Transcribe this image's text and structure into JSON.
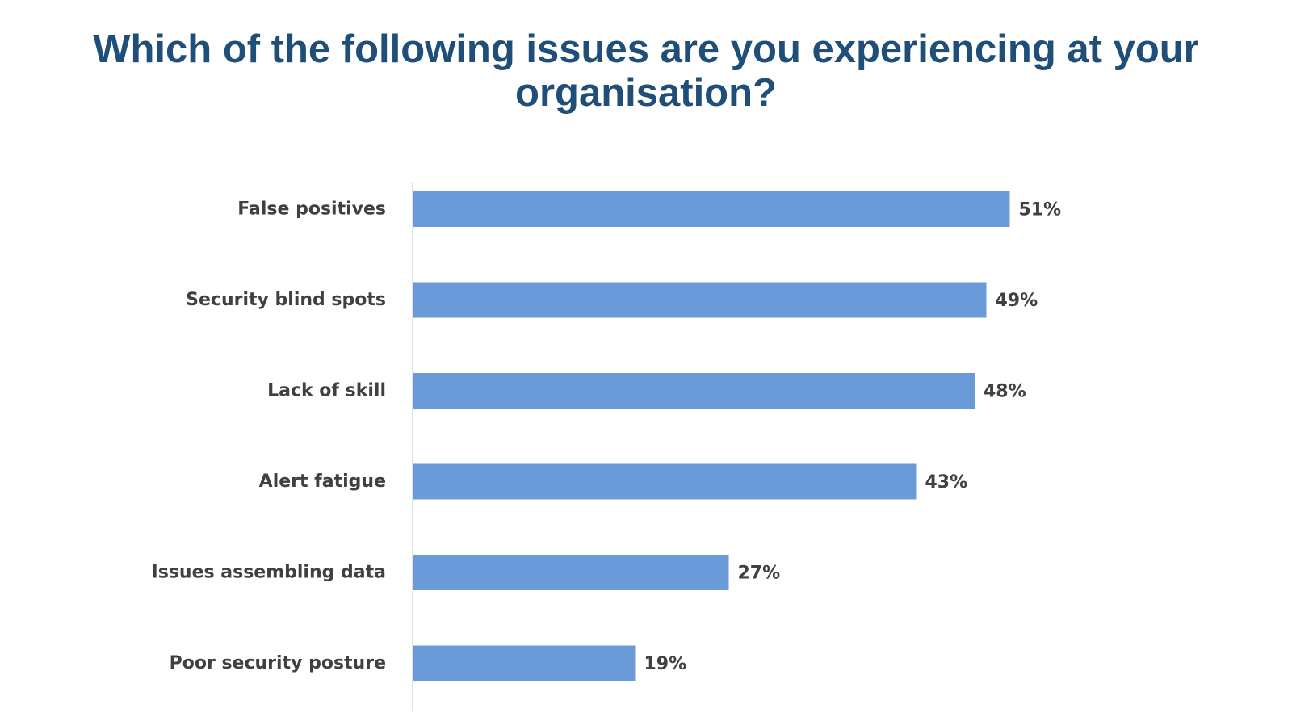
{
  "title": "Which of the following issues are you experiencing at your organisation?",
  "colors": {
    "title": "#1f4e79",
    "bar": "#6a9bd8",
    "axis": "#d9d9d9",
    "label": "#404040"
  },
  "chart_data": {
    "type": "bar",
    "orientation": "horizontal",
    "title": "Which of the following issues are you experiencing at your organisation?",
    "xlabel": "",
    "ylabel": "",
    "xlim": [
      0,
      60
    ],
    "grid": false,
    "legend": "none",
    "categories": [
      "False positives",
      "Security blind spots",
      "Lack of skill",
      "Alert fatigue",
      "Issues assembling data",
      "Poor security posture"
    ],
    "values": [
      51,
      49,
      48,
      43,
      27,
      19
    ],
    "value_labels": [
      "51%",
      "49%",
      "48%",
      "43%",
      "27%",
      "19%"
    ]
  }
}
